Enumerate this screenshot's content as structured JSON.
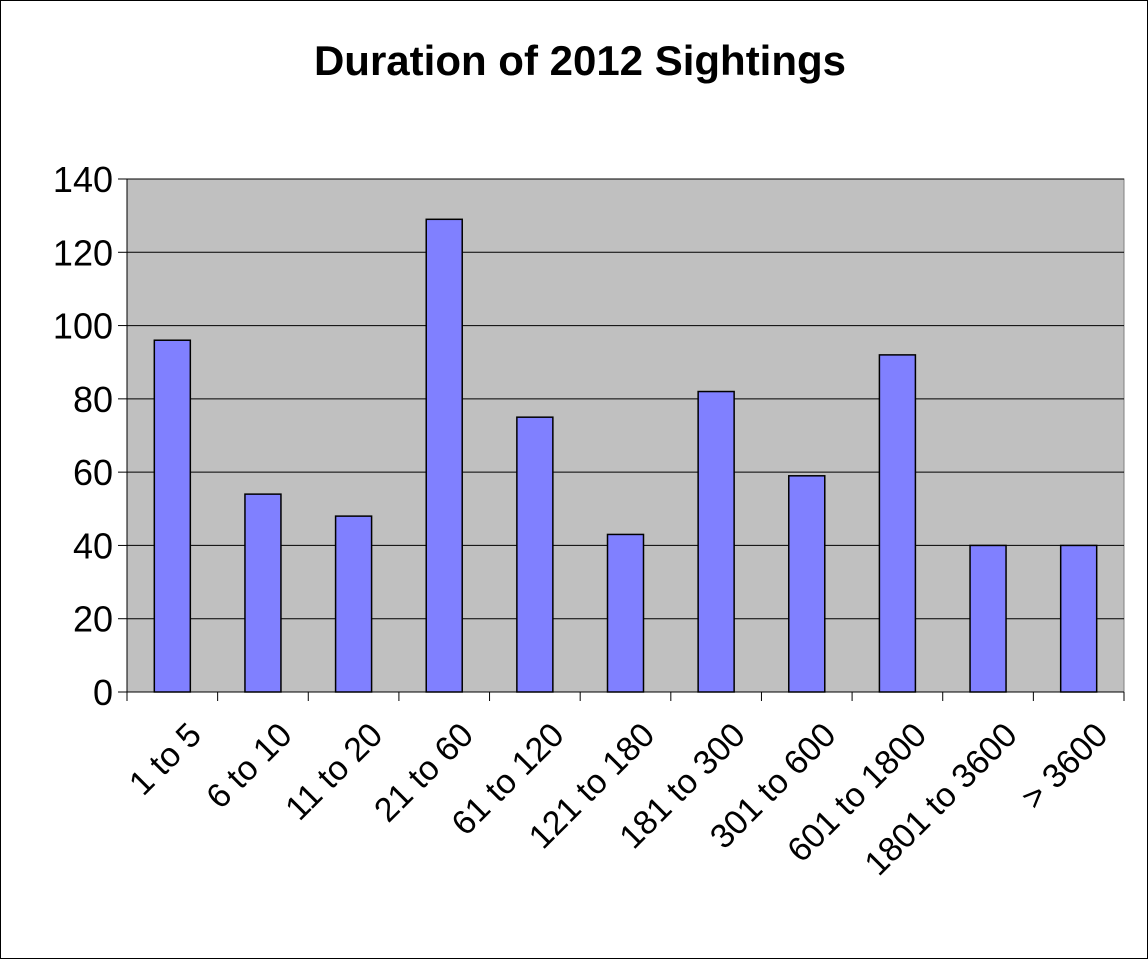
{
  "chart_data": {
    "type": "bar",
    "title": "Duration of 2012 Sightings",
    "xlabel": "",
    "ylabel": "",
    "categories": [
      "1 to 5",
      "6 to 10",
      "11 to 20",
      "21 to 60",
      "61 to 120",
      "121 to 180",
      "181 to 300",
      "301 to 600",
      "601 to 1800",
      "1801 to 3600",
      "> 3600"
    ],
    "values": [
      96,
      54,
      48,
      129,
      75,
      43,
      82,
      59,
      92,
      40,
      40
    ],
    "ylim": [
      0,
      140
    ],
    "yticks": [
      "0",
      "20",
      "40",
      "60",
      "80",
      "100",
      "120",
      "140"
    ],
    "grid": true,
    "legend": "none",
    "colors": {
      "bar": "#8080ff",
      "plot_bg": "#c0c0c0",
      "gridline": "#000000"
    }
  }
}
